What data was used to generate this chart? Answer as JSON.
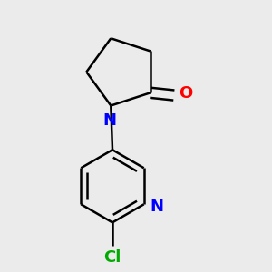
{
  "background_color": "#ebebeb",
  "bond_color": "#000000",
  "N_color": "#0000ff",
  "O_color": "#ff0000",
  "Cl_color": "#00aa00",
  "line_width": 1.8,
  "font_size_atom": 13,
  "fig_width": 3.0,
  "fig_height": 3.0,
  "dpi": 100,
  "xlim": [
    0.15,
    0.85
  ],
  "ylim": [
    0.08,
    0.92
  ]
}
